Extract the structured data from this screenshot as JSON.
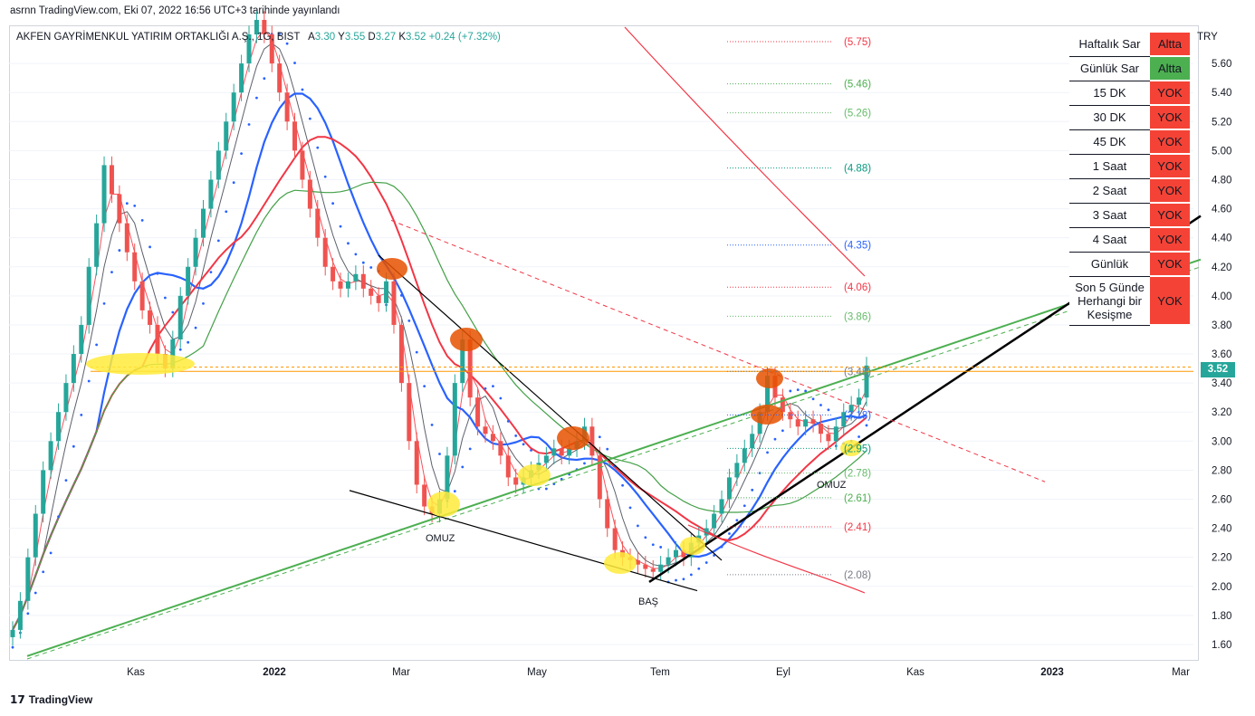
{
  "publish_line": "asrnn TradingView.com, Eki 07, 2022 16:56 UTC+3 tarihinde yayınlandı",
  "legend": {
    "symbol": "AKFEN GAYRİMENKUL YATIRIM ORTAKLIĞI A.Ş., 1G, BIST",
    "o_label": "A",
    "o_value": "3.30",
    "h_label": "Y",
    "h_value": "3.55",
    "l_label": "D",
    "l_value": "3.27",
    "c_label": "K",
    "c_value": "3.52",
    "change": "+0.24 (+7.32%)"
  },
  "footer_logo": "TradingView",
  "currency": "TRY",
  "last_price": "3.52",
  "colors": {
    "up": "#26a69a",
    "down": "#ef5350",
    "fast_ma": "#2962ff",
    "slow_ma": "#f23645",
    "trend": "#4caf50",
    "highlight_yellow": "#ffeb3b",
    "highlight_orange": "#e65100"
  },
  "signal_table": {
    "rows": [
      {
        "label": "Haftalık Sar",
        "value": "Altta",
        "color": "#f44336"
      },
      {
        "label": "Günlük Sar",
        "value": "Altta",
        "color": "#4caf50"
      },
      {
        "label": "15 DK",
        "value": "YOK",
        "color": "#f44336"
      },
      {
        "label": "30 DK",
        "value": "YOK",
        "color": "#f44336"
      },
      {
        "label": "45 DK",
        "value": "YOK",
        "color": "#f44336"
      },
      {
        "label": "1 Saat",
        "value": "YOK",
        "color": "#f44336"
      },
      {
        "label": "2 Saat",
        "value": "YOK",
        "color": "#f44336"
      },
      {
        "label": "3 Saat",
        "value": "YOK",
        "color": "#f44336"
      },
      {
        "label": "4 Saat",
        "value": "YOK",
        "color": "#f44336"
      },
      {
        "label": "Günlük",
        "value": "YOK",
        "color": "#f44336"
      },
      {
        "label": "Son 5 Günde Herhangi bir Kesişme",
        "value": "YOK",
        "color": "#f44336"
      }
    ]
  },
  "chart_data": {
    "type": "candlestick",
    "ylim": [
      1.5,
      5.85
    ],
    "y_ticks": [
      1.6,
      1.8,
      2.0,
      2.2,
      2.4,
      2.6,
      2.8,
      3.0,
      3.2,
      3.4,
      3.6,
      3.8,
      4.0,
      4.2,
      4.4,
      4.6,
      4.8,
      5.0,
      5.2,
      5.4,
      5.6
    ],
    "y_tick_labels": [
      "1.60",
      "1.80",
      "2.00",
      "2.20",
      "2.40",
      "2.60",
      "2.80",
      "3.00",
      "3.20",
      "3.40",
      "3.60",
      "3.80",
      "4.00",
      "4.20",
      "4.40",
      "4.60",
      "4.80",
      "5.00",
      "5.20",
      "5.40",
      "5.60"
    ],
    "x_labels": [
      "Kas",
      "2022",
      "Mar",
      "May",
      "Tem",
      "Eyl",
      "Kas",
      "2023",
      "Mar"
    ],
    "close_series": [
      1.7,
      1.9,
      2.2,
      2.5,
      2.8,
      3.0,
      3.2,
      3.4,
      3.6,
      3.8,
      4.2,
      4.5,
      4.9,
      4.7,
      4.5,
      4.3,
      4.1,
      3.9,
      3.8,
      3.6,
      3.5,
      3.7,
      4.0,
      4.2,
      4.4,
      4.6,
      4.8,
      5.0,
      5.2,
      5.4,
      5.6,
      5.8,
      5.9,
      5.8,
      5.6,
      5.4,
      5.2,
      5.0,
      4.8,
      4.6,
      4.4,
      4.2,
      4.1,
      4.05,
      4.1,
      4.15,
      4.05,
      4.0,
      3.95,
      4.1,
      3.8,
      3.4,
      3.0,
      2.7,
      2.55,
      2.5,
      2.6,
      2.9,
      3.4,
      3.7,
      3.3,
      3.1,
      3.05,
      3.0,
      2.9,
      2.75,
      2.7,
      2.75,
      2.8,
      2.85,
      2.9,
      2.95,
      2.9,
      2.95,
      3.0,
      3.1,
      2.9,
      2.6,
      2.4,
      2.25,
      2.2,
      2.18,
      2.15,
      2.12,
      2.1,
      2.15,
      2.2,
      2.25,
      2.2,
      2.3,
      2.35,
      2.4,
      2.5,
      2.6,
      2.75,
      2.85,
      2.95,
      3.05,
      3.2,
      3.45,
      3.3,
      3.2,
      3.15,
      3.1,
      3.15,
      3.12,
      3.05,
      3.0,
      3.1,
      3.2,
      3.25,
      3.3,
      3.52
    ],
    "fib_levels": [
      {
        "label": "(5.75)",
        "value": 5.75,
        "color": "#f23645"
      },
      {
        "label": "(5.46)",
        "value": 5.46,
        "color": "#4caf50"
      },
      {
        "label": "(5.26)",
        "value": 5.26,
        "color": "#66bb6a"
      },
      {
        "label": "(4.88)",
        "value": 4.88,
        "color": "#089981"
      },
      {
        "label": "(4.35)",
        "value": 4.35,
        "color": "#2962ff"
      },
      {
        "label": "(4.06)",
        "value": 4.06,
        "color": "#f23645"
      },
      {
        "label": "(3.86)",
        "value": 3.86,
        "color": "#66bb6a"
      },
      {
        "label": "(3.48)",
        "value": 3.48,
        "color": "#787b86"
      },
      {
        "label": "(3.18)",
        "value": 3.18,
        "color": "#2962ff"
      },
      {
        "label": "(2.95)",
        "value": 2.95,
        "color": "#089981"
      },
      {
        "label": "(2.78)",
        "value": 2.78,
        "color": "#66bb6a"
      },
      {
        "label": "(2.61)",
        "value": 2.61,
        "color": "#4caf50"
      },
      {
        "label": "(2.41)",
        "value": 2.41,
        "color": "#f23645"
      },
      {
        "label": "(2.08)",
        "value": 2.08,
        "color": "#787b86"
      }
    ],
    "annotations": [
      "OMUZ",
      "BAŞ",
      "OMUZ"
    ],
    "resistance_level": 3.48
  }
}
